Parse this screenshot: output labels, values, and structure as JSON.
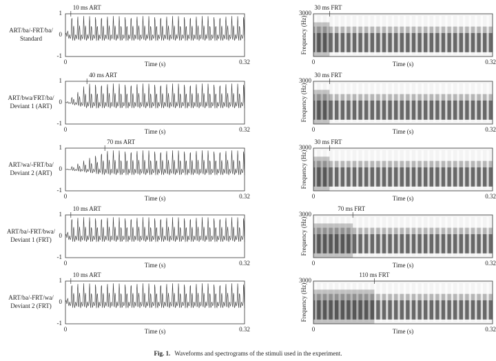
{
  "rows": [
    {
      "label_lines": [
        "ART/ba/-FRT/ba/",
        "Standard"
      ],
      "waveform": {
        "rise_label": "10 ms ART",
        "yticks": [
          "1",
          "0",
          "-1"
        ],
        "xticks": [
          "0",
          "0.32"
        ],
        "xlabel": "Time (s)"
      },
      "spectrogram": {
        "rise_label": "30 ms FRT",
        "ylabel": "Frequency (Hz)",
        "yticks": [
          "3000"
        ],
        "xticks": [
          "0",
          "0.32"
        ],
        "xlabel": "Time (s)"
      }
    },
    {
      "label_lines": [
        "ART/bwa/FRT/ba/",
        "Deviant 1 (ART)"
      ],
      "waveform": {
        "rise_label": "40 ms ART",
        "yticks": [
          "1",
          "0",
          "-1"
        ],
        "xticks": [
          "0",
          "0.32"
        ],
        "xlabel": "Time (s)"
      },
      "spectrogram": {
        "rise_label": "30 ms FRT",
        "ylabel": "Frequency (Hz)",
        "yticks": [
          "3000"
        ],
        "xticks": [
          "0",
          "0.32"
        ],
        "xlabel": "Time (s)"
      }
    },
    {
      "label_lines": [
        "ART/wa/-FRT/ba/",
        "Deviant 2 (ART)"
      ],
      "waveform": {
        "rise_label": "70 ms ART",
        "yticks": [
          "1",
          "0",
          "-1"
        ],
        "xticks": [
          "0",
          "0.32"
        ],
        "xlabel": "Time (s)"
      },
      "spectrogram": {
        "rise_label": "30 ms FRT",
        "ylabel": "Frequency (Hz)",
        "yticks": [
          "3000"
        ],
        "xticks": [
          "0",
          "0.32"
        ],
        "xlabel": "Time (s)"
      }
    },
    {
      "label_lines": [
        "ART/ba/-FRT/bwa/",
        "Deviant 1 (FRT)"
      ],
      "waveform": {
        "rise_label": "10 ms ART",
        "yticks": [
          "1",
          "0",
          "-1"
        ],
        "xticks": [
          "0",
          "0.32"
        ],
        "xlabel": "Time (s)"
      },
      "spectrogram": {
        "rise_label": "70 ms FRT",
        "ylabel": "Frequency (Hz)",
        "yticks": [
          "3000"
        ],
        "xticks": [
          "0",
          "0.32"
        ],
        "xlabel": "Time (s)"
      }
    },
    {
      "label_lines": [
        "ART/ba/-FRT/wa/",
        "Deviant 2 (FRT)"
      ],
      "waveform": {
        "rise_label": "10 ms ART",
        "yticks": [
          "1",
          "0",
          "-1"
        ],
        "xticks": [
          "0",
          "0.32"
        ],
        "xlabel": "Time (s)"
      },
      "spectrogram": {
        "rise_label": "110 ms FRT",
        "ylabel": "Frequency (Hz)",
        "yticks": [
          "3000"
        ],
        "xticks": [
          "0",
          "0.32"
        ],
        "xlabel": "Time (s)"
      }
    }
  ],
  "caption": {
    "label": "Fig. 1.",
    "text": "Waveforms and spectrograms of the stimuli used in the experiment."
  }
}
